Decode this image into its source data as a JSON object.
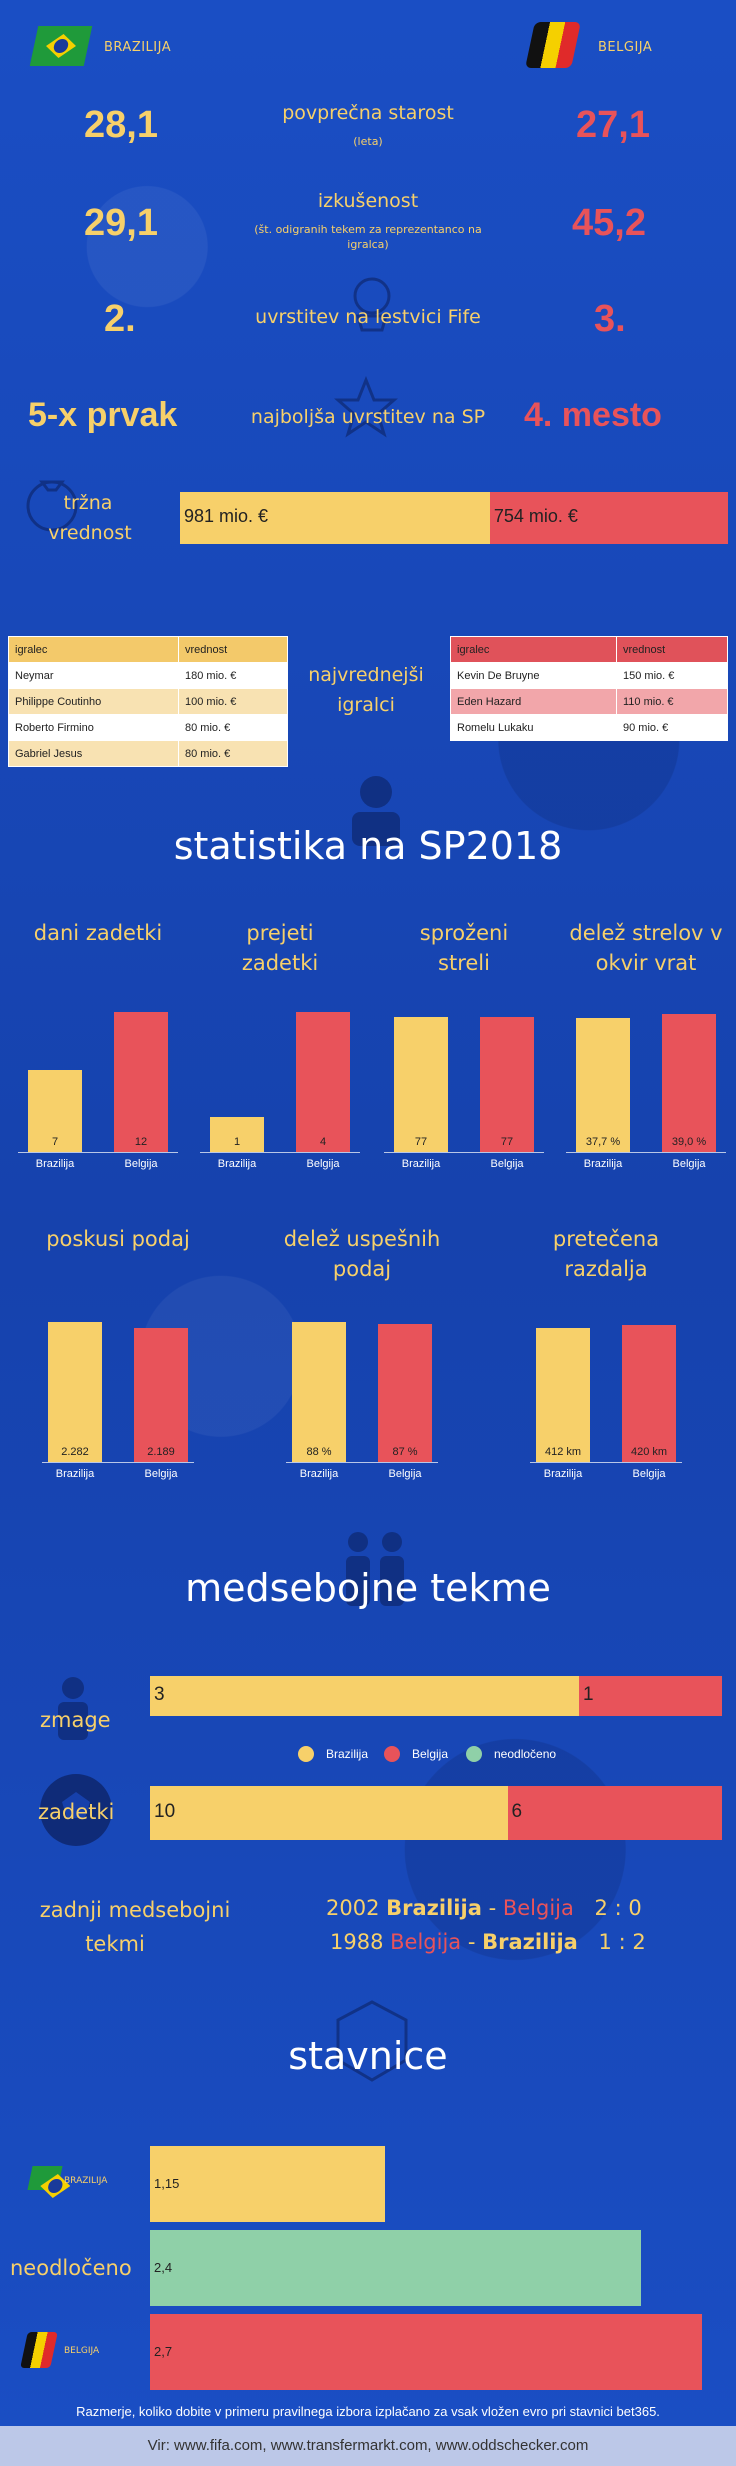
{
  "teams": {
    "home": "BRAZILIJA",
    "away": "BELGIJA"
  },
  "comparisons": [
    {
      "label": "povprečna starost",
      "sub": "(leta)",
      "home": "28,1",
      "away": "27,1"
    },
    {
      "label": "izkušenost",
      "sub": "(št. odigranih tekem za reprezentanco na igralca)",
      "home": "29,1",
      "away": "45,2"
    },
    {
      "label": "uvrstitev na lestvici Fife",
      "sub": "",
      "home": "2.",
      "away": "3."
    },
    {
      "label": "najboljša uvrstitev na SP",
      "sub": "",
      "home": "5-x prvak",
      "away": "4. mesto"
    }
  ],
  "market": {
    "label_line1": "tržna",
    "label_line2": "vrednost",
    "home_text": "981 mio. €",
    "away_text": "754 mio. €",
    "home_value": 981,
    "away_value": 754
  },
  "players": {
    "title_line1": "najvrednejši",
    "title_line2": "igralci",
    "col_player": "igralec",
    "col_value": "vrednost",
    "home": [
      {
        "name": "Neymar",
        "value": "180 mio. €"
      },
      {
        "name": "Philippe Coutinho",
        "value": "100 mio. €"
      },
      {
        "name": "Roberto Firmino",
        "value": "80 mio. €"
      },
      {
        "name": "Gabriel Jesus",
        "value": "80 mio. €"
      }
    ],
    "away": [
      {
        "name": "Kevin De Bruyne",
        "value": "150 mio. €"
      },
      {
        "name": "Eden Hazard",
        "value": "110 mio. €"
      },
      {
        "name": "Romelu Lukaku",
        "value": "90 mio. €"
      }
    ]
  },
  "stats_title": "statistika na SP2018",
  "colors": {
    "home": "#f7d06a",
    "away": "#e8535a",
    "draw": "#8fd0a8"
  },
  "chart_data": [
    {
      "type": "bar",
      "title": "dani zadetki",
      "categories": [
        "Brazilija",
        "Belgija"
      ],
      "values": [
        7,
        12
      ],
      "labels": [
        "7",
        "12"
      ],
      "ymax": 12
    },
    {
      "type": "bar",
      "title": "prejeti zadetki",
      "categories": [
        "Brazilija",
        "Belgija"
      ],
      "values": [
        1,
        4
      ],
      "labels": [
        "1",
        "4"
      ],
      "ymax": 4
    },
    {
      "type": "bar",
      "title": "sproženi streli",
      "categories": [
        "Brazilija",
        "Belgija"
      ],
      "values": [
        77,
        77
      ],
      "labels": [
        "77",
        "77"
      ],
      "ymax": 80
    },
    {
      "type": "bar",
      "title": "delež strelov v okvir vrat",
      "categories": [
        "Brazilija",
        "Belgija"
      ],
      "values": [
        37.7,
        39.0
      ],
      "labels": [
        "37,7 %",
        "39,0 %"
      ],
      "ymax": 39.5
    },
    {
      "type": "bar",
      "title": "poskusi podaj",
      "categories": [
        "Brazilija",
        "Belgija"
      ],
      "values": [
        2282,
        2189
      ],
      "labels": [
        "2.282",
        "2.189"
      ],
      "ymax": 2282
    },
    {
      "type": "bar",
      "title": "delež uspešnih podaj",
      "categories": [
        "Brazilija",
        "Belgija"
      ],
      "values": [
        88,
        87
      ],
      "labels": [
        "88 %",
        "87 %"
      ],
      "ymax": 88
    },
    {
      "type": "bar",
      "title": "pretečena razdalja",
      "categories": [
        "Brazilija",
        "Belgija"
      ],
      "values": [
        412,
        420
      ],
      "labels": [
        "412 km",
        "420 km"
      ],
      "ymax": 430
    }
  ],
  "h2h": {
    "title": "medsebojne tekme",
    "wins_label": "zmage",
    "goals_label": "zadetki",
    "wins": {
      "home": 3,
      "away": 1
    },
    "goals": {
      "home": 10,
      "away": 6
    },
    "legend": [
      "Brazilija",
      "Belgija",
      "neodločeno"
    ],
    "last_label_1": "zadnji medsebojni",
    "last_label_2": "tekmi",
    "games": [
      {
        "year": "2002",
        "team1": "Brazilija",
        "sep": "-",
        "team2": "Belgija",
        "score": "2 : 0"
      },
      {
        "year": "1988",
        "team1": "Belgija",
        "sep": "-",
        "team2": "Brazilija",
        "score": "1 : 2"
      }
    ]
  },
  "odds": {
    "title": "stavnice",
    "home_label": "BRAZILIJA",
    "draw_label": "neodločeno",
    "away_label": "BELGIJA",
    "home": 1.15,
    "draw": 2.4,
    "away": 2.7,
    "home_text": "1,15",
    "draw_text": "2,4",
    "away_text": "2,7",
    "note": "Razmerje, koliko dobite v primeru pravilnega izbora izplačano za vsak vložen evro pri stavnici bet365."
  },
  "footer": "Vir: www.fifa.com, www.transfermarkt.com, www.oddschecker.com"
}
